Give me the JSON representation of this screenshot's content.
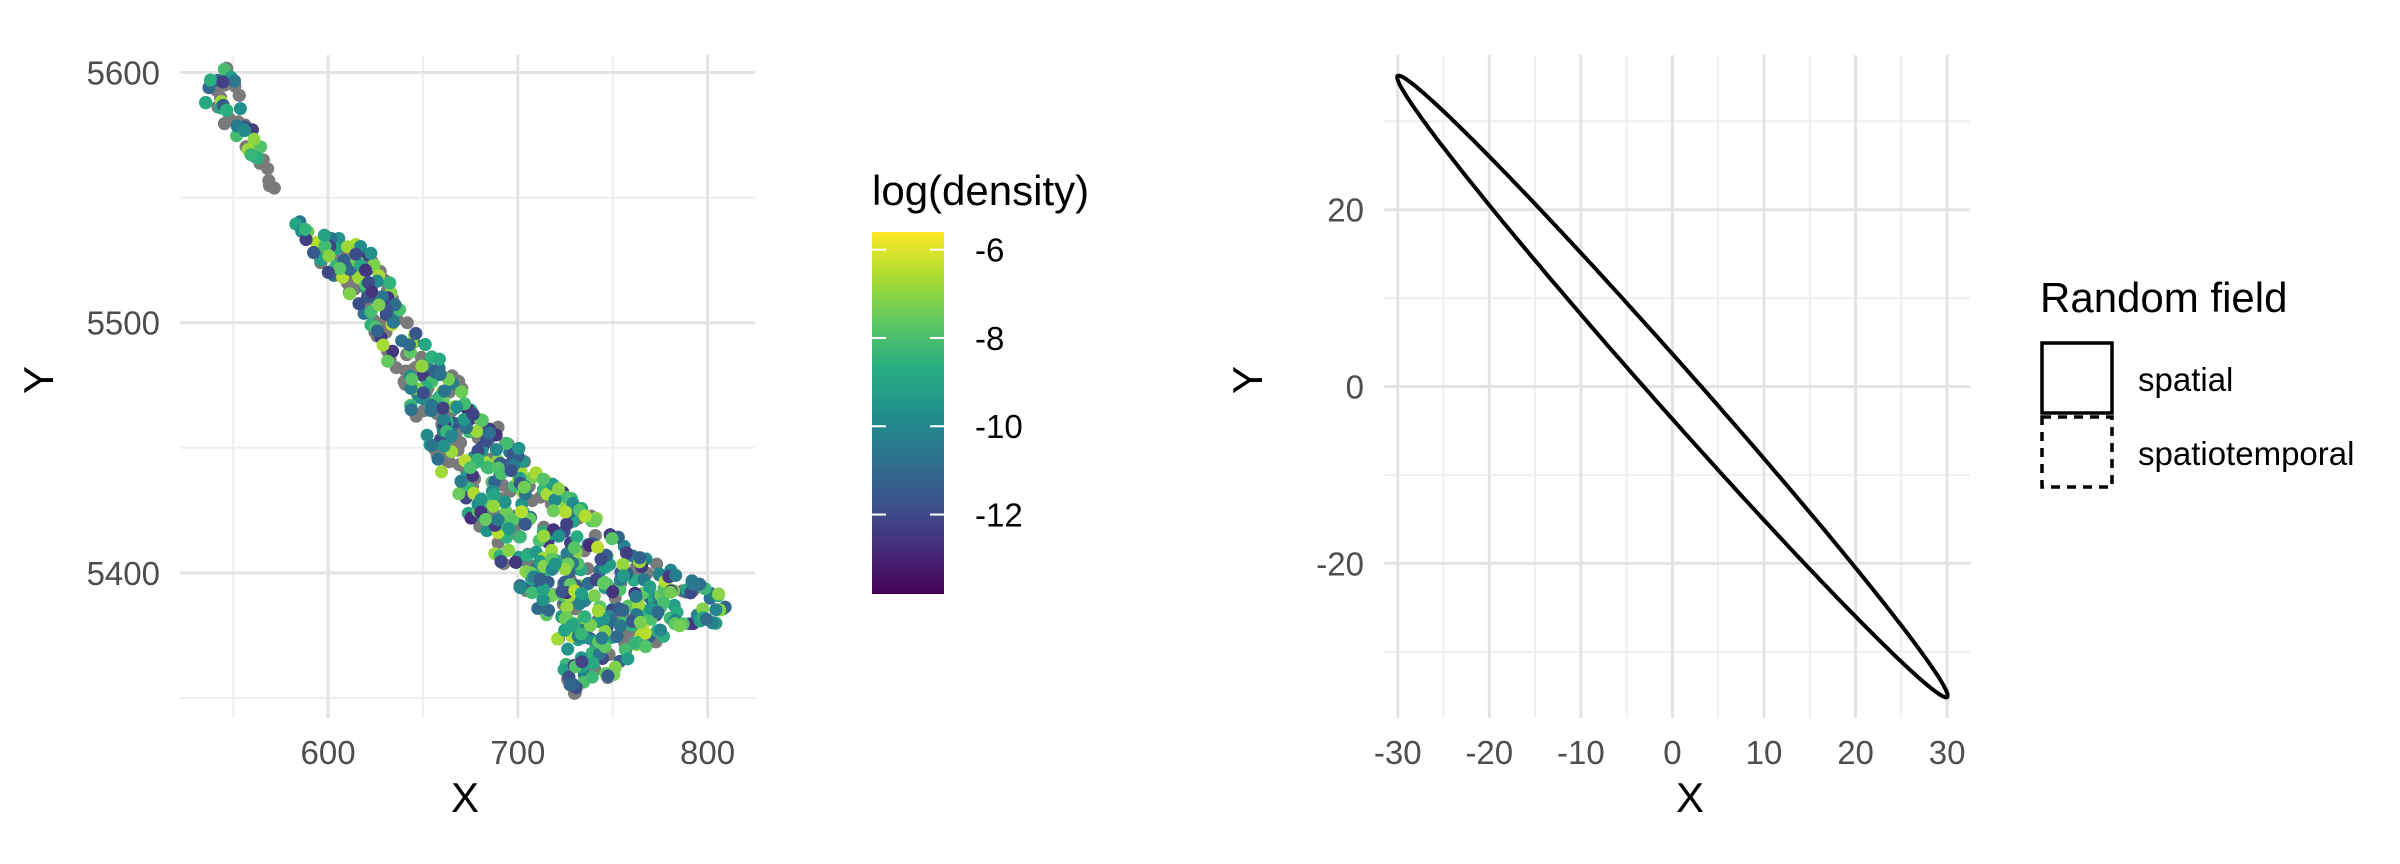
{
  "colors": {
    "na_point": "#7a7a7a",
    "grid_major": "#e3e3e3",
    "grid_minor": "#efefef",
    "ellipse": "#000000",
    "viridis": [
      "#440154",
      "#472D7B",
      "#3B528B",
      "#2C728E",
      "#21908C",
      "#27AD81",
      "#5DC863",
      "#AADC32",
      "#FDE725"
    ]
  },
  "chart_data": [
    {
      "type": "scatter",
      "xlabel": "X",
      "ylabel": "Y",
      "xlim": [
        522,
        825
      ],
      "ylim": [
        5342,
        5607
      ],
      "x_ticks": [
        600,
        700,
        800
      ],
      "x_tick_labels": [
        "600",
        "700",
        "800"
      ],
      "y_ticks": [
        5400,
        5500,
        5600
      ],
      "y_tick_labels": [
        "5400",
        "5500",
        "5600"
      ],
      "grid": true,
      "color_scale": {
        "title": "log(density)",
        "palette": "viridis",
        "range": [
          -13.8,
          -5.6
        ],
        "ticks": [
          -6,
          -8,
          -10,
          -12
        ],
        "tick_labels": [
          "-6",
          "-8",
          "-10",
          "-12"
        ],
        "legend_position": "right"
      },
      "na_points_color": "grey",
      "point_cloud_outline": [
        [
          533,
          5595
        ],
        [
          548,
          5603
        ],
        [
          556,
          5585
        ],
        [
          570,
          5565
        ],
        [
          575,
          5545
        ],
        [
          600,
          5535
        ],
        [
          625,
          5530
        ],
        [
          640,
          5505
        ],
        [
          660,
          5485
        ],
        [
          690,
          5458
        ],
        [
          720,
          5435
        ],
        [
          745,
          5420
        ],
        [
          770,
          5405
        ],
        [
          790,
          5398
        ],
        [
          812,
          5390
        ],
        [
          806,
          5380
        ],
        [
          785,
          5378
        ],
        [
          762,
          5367
        ],
        [
          745,
          5355
        ],
        [
          735,
          5345
        ],
        [
          725,
          5358
        ],
        [
          718,
          5378
        ],
        [
          700,
          5395
        ],
        [
          680,
          5415
        ],
        [
          660,
          5440
        ],
        [
          640,
          5468
        ],
        [
          628,
          5490
        ],
        [
          615,
          5508
        ],
        [
          600,
          5520
        ],
        [
          585,
          5535
        ],
        [
          565,
          5560
        ],
        [
          545,
          5578
        ],
        [
          533,
          5590
        ]
      ]
    },
    {
      "type": "line",
      "xlabel": "X",
      "ylabel": "Y",
      "xlim": [
        -31.5,
        32.5
      ],
      "ylim": [
        -37.5,
        37.5
      ],
      "x_ticks": [
        -30,
        -20,
        -10,
        0,
        10,
        20,
        30
      ],
      "x_tick_labels": [
        "-30",
        "-20",
        "-10",
        "0",
        "10",
        "20",
        "30"
      ],
      "y_ticks": [
        -20,
        0,
        20
      ],
      "y_tick_labels": [
        "-20",
        "0",
        "20"
      ],
      "grid": true,
      "legend": {
        "title": "Random field",
        "position": "right",
        "entries": [
          {
            "label": "spatial",
            "linetype": "solid"
          },
          {
            "label": "spatiotemporal",
            "linetype": "dashed"
          }
        ]
      },
      "series": [
        {
          "name": "spatial",
          "shape": "ellipse",
          "center": [
            0,
            0
          ],
          "angle_deg": -49.5,
          "semi_major": 46.2,
          "semi_minor": 2.4
        }
      ]
    }
  ]
}
